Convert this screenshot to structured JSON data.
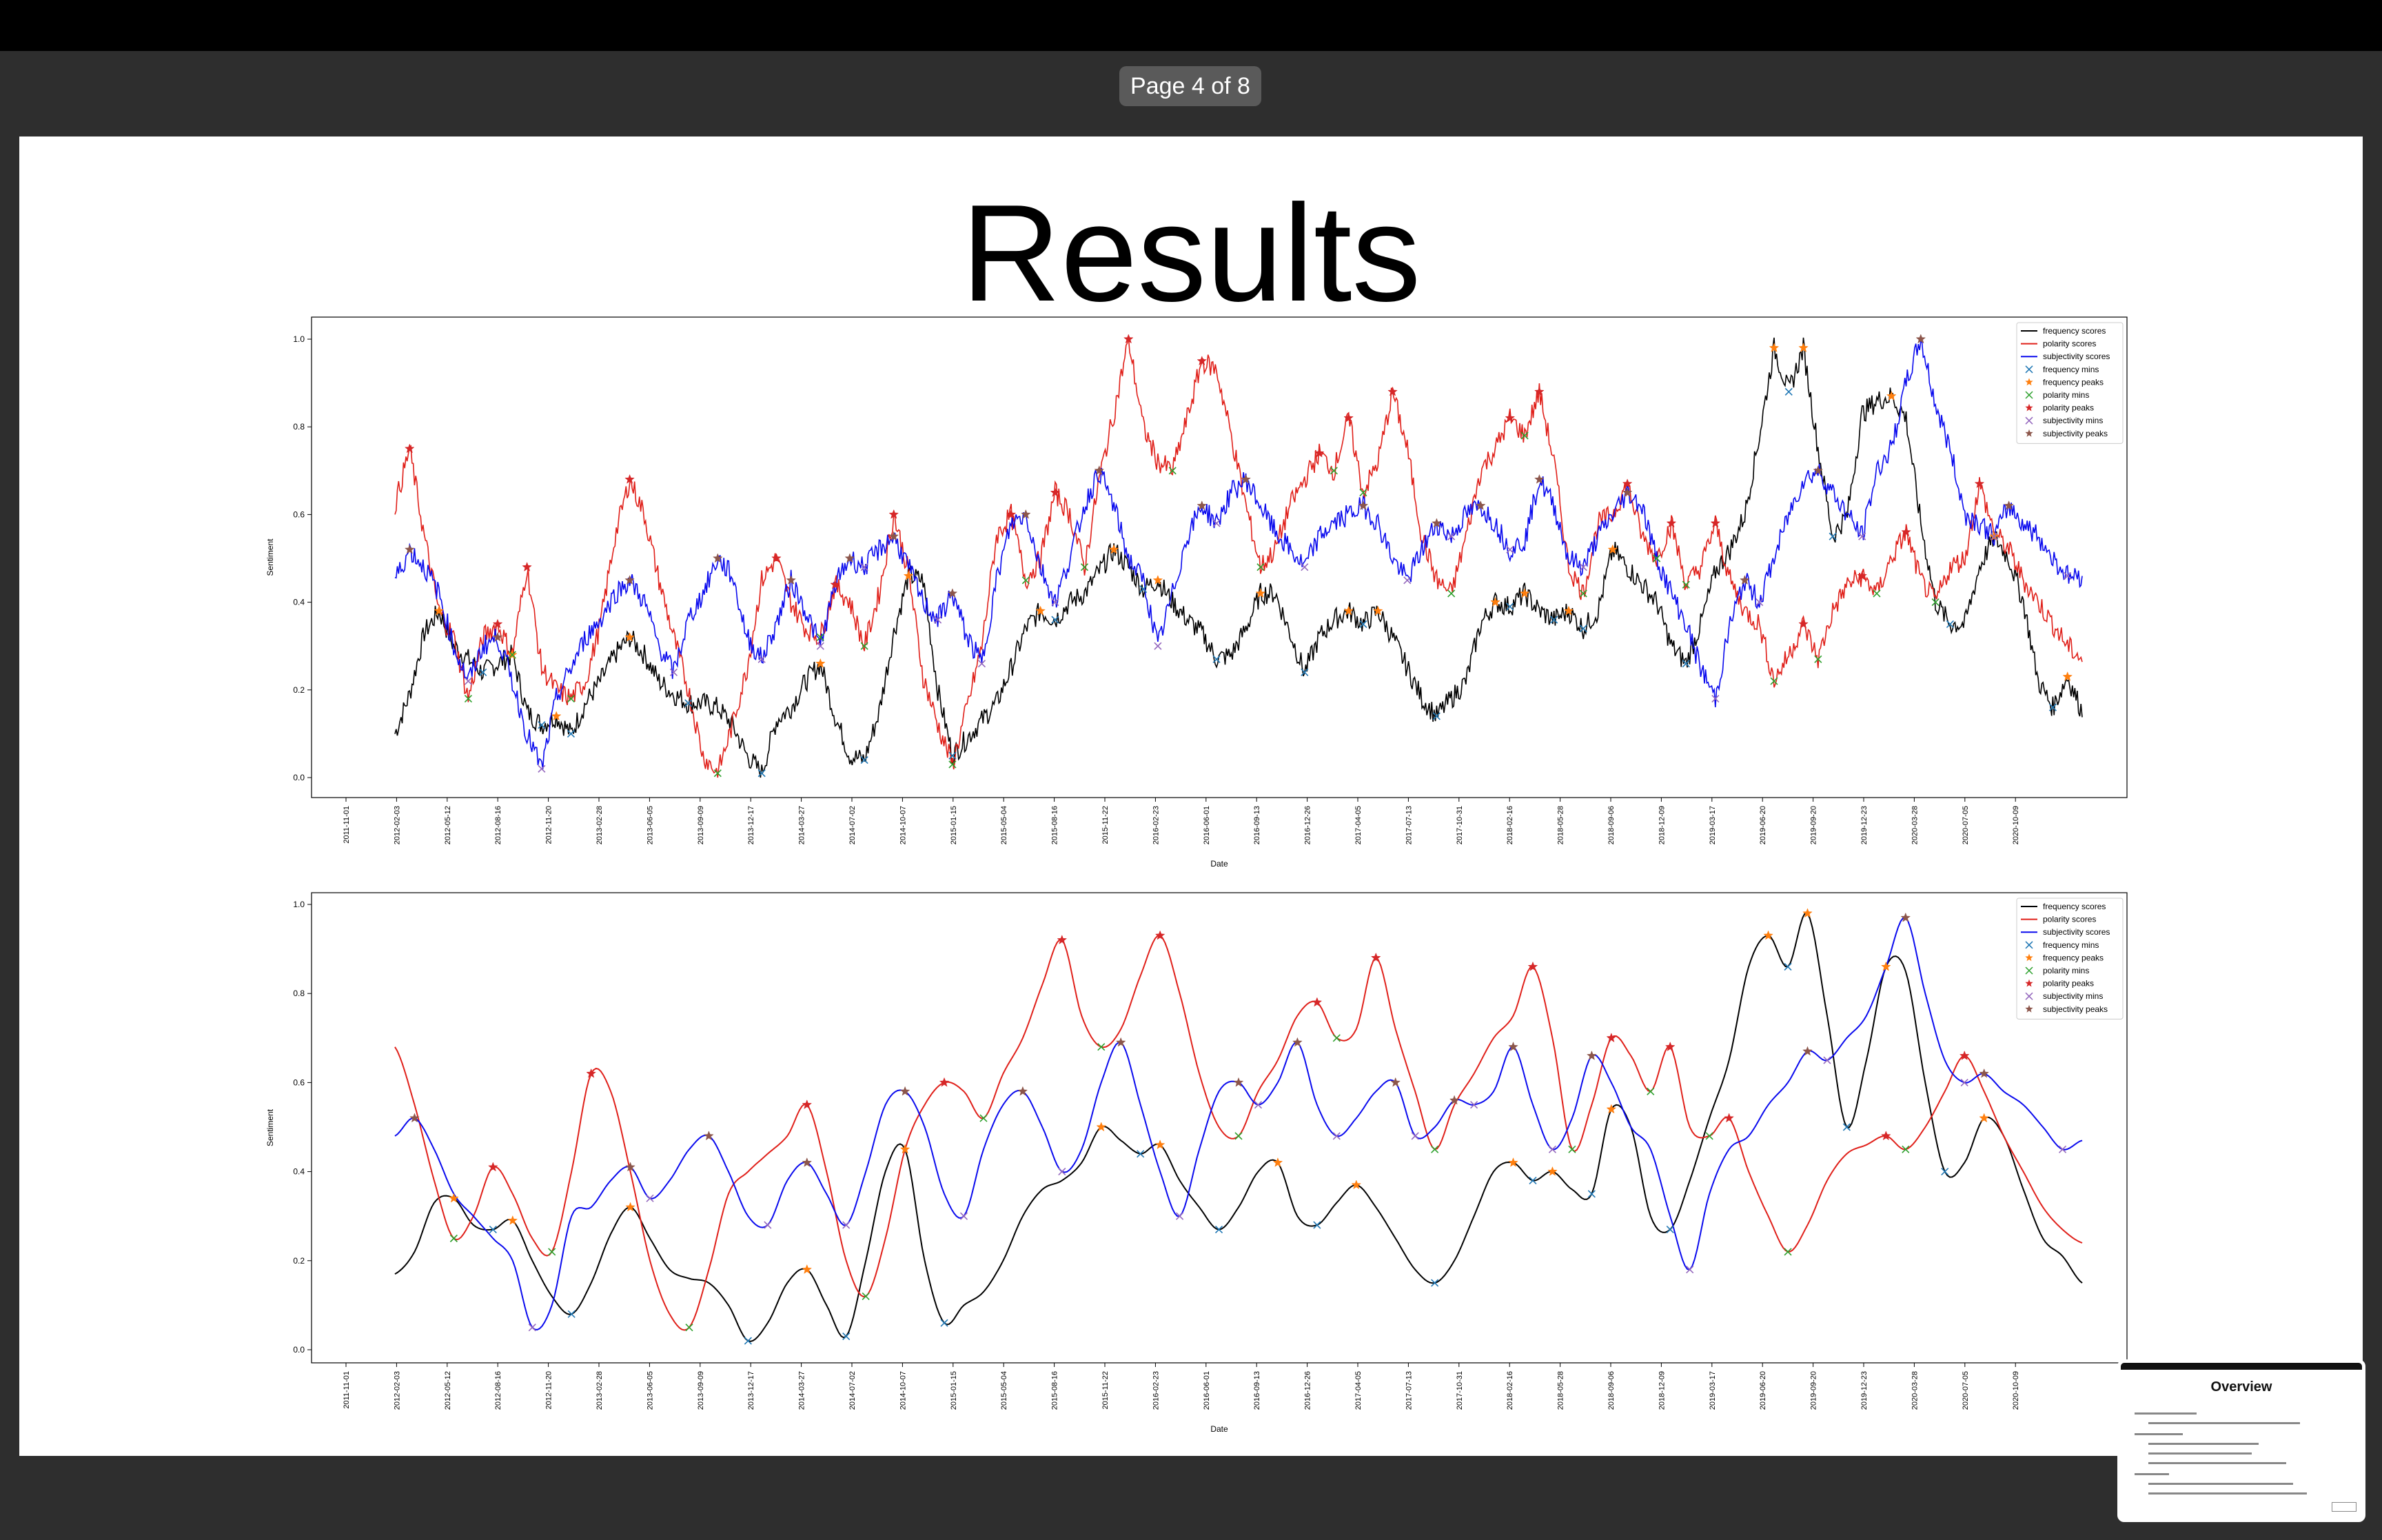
{
  "viewer": {
    "page_indicator": "Page 4 of 8"
  },
  "slide": {
    "title": "Results"
  },
  "thumbnail": {
    "title": "Overview"
  },
  "colors": {
    "frequency": "#000000",
    "polarity": "#e0201a",
    "subjectivity": "#0a0aee",
    "frequency_mins": "#1f77b4",
    "frequency_peaks": "#ff7f0e",
    "polarity_mins": "#2ca02c",
    "polarity_peaks": "#d62728",
    "subjectivity_mins": "#9467bd",
    "subjectivity_peaks": "#8c564b"
  },
  "chart_data": [
    {
      "type": "line",
      "title": "",
      "xlabel": "Date",
      "ylabel": "Sentiment",
      "ylim": [
        0.0,
        1.0
      ],
      "yticks": [
        "0.0",
        "0.2",
        "0.4",
        "0.6",
        "0.8",
        "1.0"
      ],
      "x_tick_labels": [
        "2011-11-01",
        "2012-02-03",
        "2012-05-12",
        "2012-08-16",
        "2012-11-20",
        "2013-02-28",
        "2013-06-05",
        "2013-09-09",
        "2013-12-17",
        "2014-03-27",
        "2014-07-02",
        "2014-10-07",
        "2015-01-15",
        "2015-05-04",
        "2015-08-16",
        "2015-11-22",
        "2016-02-23",
        "2016-06-01",
        "2016-09-13",
        "2016-12-26",
        "2017-04-05",
        "2017-07-13",
        "2017-10-31",
        "2018-02-16",
        "2018-05-28",
        "2018-09-06",
        "2018-12-09",
        "2019-03-17",
        "2019-06-20",
        "2019-09-20",
        "2019-12-23",
        "2020-03-28",
        "2020-07-05",
        "2020-10-09"
      ],
      "legend": [
        "frequency scores",
        "polarity scores",
        "subjectivity scores",
        "frequency mins",
        "frequency peaks",
        "polarity mins",
        "polarity peaks",
        "subjectivity mins",
        "subjectivity peaks"
      ],
      "legend_position": "top-right",
      "noisy": true,
      "series": [
        {
          "name": "frequency scores",
          "key": "frequency",
          "values": [
            0.1,
            0.19,
            0.33,
            0.38,
            0.3,
            0.27,
            0.24,
            0.26,
            0.28,
            0.15,
            0.12,
            0.14,
            0.1,
            0.17,
            0.22,
            0.28,
            0.32,
            0.28,
            0.22,
            0.19,
            0.17,
            0.17,
            0.16,
            0.12,
            0.05,
            0.01,
            0.13,
            0.16,
            0.22,
            0.26,
            0.14,
            0.05,
            0.04,
            0.15,
            0.33,
            0.46,
            0.45,
            0.2,
            0.05,
            0.09,
            0.13,
            0.17,
            0.25,
            0.34,
            0.38,
            0.36,
            0.4,
            0.42,
            0.47,
            0.52,
            0.48,
            0.43,
            0.45,
            0.4,
            0.36,
            0.33,
            0.27,
            0.28,
            0.34,
            0.42,
            0.42,
            0.33,
            0.24,
            0.32,
            0.36,
            0.38,
            0.35,
            0.38,
            0.32,
            0.25,
            0.18,
            0.14,
            0.18,
            0.22,
            0.35,
            0.4,
            0.39,
            0.42,
            0.38,
            0.36,
            0.38,
            0.34,
            0.38,
            0.52,
            0.48,
            0.44,
            0.4,
            0.3,
            0.26,
            0.35,
            0.47,
            0.52,
            0.6,
            0.78,
            0.98,
            0.88,
            0.98,
            0.75,
            0.55,
            0.6,
            0.83,
            0.86,
            0.87,
            0.82,
            0.58,
            0.4,
            0.35,
            0.35,
            0.48,
            0.55,
            0.5,
            0.4,
            0.22,
            0.16,
            0.23,
            0.15
          ]
        },
        {
          "name": "polarity scores",
          "key": "polarity",
          "values": [
            0.62,
            0.75,
            0.55,
            0.38,
            0.32,
            0.18,
            0.32,
            0.35,
            0.28,
            0.48,
            0.25,
            0.2,
            0.18,
            0.22,
            0.35,
            0.55,
            0.68,
            0.6,
            0.45,
            0.32,
            0.2,
            0.05,
            0.01,
            0.12,
            0.25,
            0.45,
            0.5,
            0.4,
            0.34,
            0.32,
            0.44,
            0.4,
            0.3,
            0.42,
            0.6,
            0.47,
            0.23,
            0.12,
            0.03,
            0.16,
            0.3,
            0.55,
            0.6,
            0.45,
            0.5,
            0.65,
            0.6,
            0.48,
            0.68,
            0.83,
            1.0,
            0.8,
            0.72,
            0.7,
            0.82,
            0.95,
            0.93,
            0.78,
            0.62,
            0.48,
            0.52,
            0.62,
            0.68,
            0.74,
            0.7,
            0.82,
            0.65,
            0.72,
            0.88,
            0.75,
            0.55,
            0.45,
            0.42,
            0.55,
            0.7,
            0.75,
            0.82,
            0.78,
            0.88,
            0.72,
            0.48,
            0.42,
            0.58,
            0.6,
            0.67,
            0.55,
            0.5,
            0.58,
            0.44,
            0.48,
            0.58,
            0.45,
            0.38,
            0.35,
            0.22,
            0.28,
            0.35,
            0.27,
            0.38,
            0.44,
            0.46,
            0.42,
            0.5,
            0.56,
            0.45,
            0.4,
            0.48,
            0.5,
            0.67,
            0.56,
            0.52,
            0.45,
            0.4,
            0.35,
            0.3,
            0.27
          ]
        },
        {
          "name": "subjectivity scores",
          "key": "subjectivity",
          "values": [
            0.45,
            0.52,
            0.48,
            0.42,
            0.3,
            0.22,
            0.3,
            0.32,
            0.22,
            0.1,
            0.02,
            0.18,
            0.25,
            0.32,
            0.36,
            0.42,
            0.45,
            0.4,
            0.3,
            0.24,
            0.36,
            0.42,
            0.5,
            0.46,
            0.32,
            0.27,
            0.35,
            0.45,
            0.38,
            0.3,
            0.44,
            0.5,
            0.48,
            0.52,
            0.55,
            0.48,
            0.4,
            0.36,
            0.42,
            0.32,
            0.26,
            0.45,
            0.58,
            0.6,
            0.48,
            0.4,
            0.5,
            0.62,
            0.7,
            0.62,
            0.5,
            0.45,
            0.3,
            0.42,
            0.55,
            0.62,
            0.58,
            0.65,
            0.68,
            0.62,
            0.56,
            0.52,
            0.48,
            0.55,
            0.58,
            0.6,
            0.62,
            0.58,
            0.5,
            0.45,
            0.52,
            0.58,
            0.55,
            0.6,
            0.62,
            0.58,
            0.52,
            0.54,
            0.68,
            0.62,
            0.5,
            0.48,
            0.55,
            0.6,
            0.65,
            0.62,
            0.5,
            0.42,
            0.35,
            0.25,
            0.18,
            0.35,
            0.45,
            0.4,
            0.5,
            0.6,
            0.68,
            0.7,
            0.65,
            0.6,
            0.55,
            0.7,
            0.75,
            0.9,
            1.0,
            0.85,
            0.75,
            0.6,
            0.58,
            0.55,
            0.62,
            0.58,
            0.55,
            0.5,
            0.46,
            0.46
          ]
        }
      ]
    },
    {
      "type": "line",
      "title": "",
      "xlabel": "Date",
      "ylabel": "Sentiment",
      "ylim": [
        0.0,
        1.0
      ],
      "yticks": [
        "0.0",
        "0.2",
        "0.4",
        "0.6",
        "0.8",
        "1.0"
      ],
      "x_tick_labels": [
        "2011-11-01",
        "2012-02-03",
        "2012-05-12",
        "2012-08-16",
        "2012-11-20",
        "2013-02-28",
        "2013-06-05",
        "2013-09-09",
        "2013-12-17",
        "2014-03-27",
        "2014-07-02",
        "2014-10-07",
        "2015-01-15",
        "2015-05-04",
        "2015-08-16",
        "2015-11-22",
        "2016-02-23",
        "2016-06-01",
        "2016-09-13",
        "2016-12-26",
        "2017-04-05",
        "2017-07-13",
        "2017-10-31",
        "2018-02-16",
        "2018-05-28",
        "2018-09-06",
        "2018-12-09",
        "2019-03-17",
        "2019-06-20",
        "2019-09-20",
        "2019-12-23",
        "2020-03-28",
        "2020-07-05",
        "2020-10-09"
      ],
      "legend": [
        "frequency scores",
        "polarity scores",
        "subjectivity scores",
        "frequency mins",
        "frequency peaks",
        "polarity mins",
        "polarity peaks",
        "subjectivity mins",
        "subjectivity peaks"
      ],
      "legend_position": "top-right",
      "noisy": false,
      "series": [
        {
          "name": "frequency scores",
          "key": "frequency",
          "values": [
            0.17,
            0.22,
            0.33,
            0.34,
            0.28,
            0.27,
            0.29,
            0.2,
            0.12,
            0.08,
            0.15,
            0.26,
            0.32,
            0.25,
            0.18,
            0.16,
            0.15,
            0.1,
            0.02,
            0.06,
            0.15,
            0.18,
            0.1,
            0.03,
            0.2,
            0.4,
            0.45,
            0.2,
            0.06,
            0.1,
            0.13,
            0.2,
            0.3,
            0.36,
            0.38,
            0.42,
            0.5,
            0.47,
            0.44,
            0.46,
            0.38,
            0.32,
            0.27,
            0.32,
            0.4,
            0.42,
            0.3,
            0.28,
            0.33,
            0.37,
            0.32,
            0.25,
            0.18,
            0.15,
            0.2,
            0.3,
            0.4,
            0.42,
            0.38,
            0.4,
            0.36,
            0.35,
            0.54,
            0.5,
            0.3,
            0.27,
            0.38,
            0.52,
            0.65,
            0.86,
            0.93,
            0.86,
            0.98,
            0.75,
            0.5,
            0.65,
            0.86,
            0.85,
            0.6,
            0.4,
            0.42,
            0.52,
            0.48,
            0.36,
            0.25,
            0.21,
            0.15
          ]
        },
        {
          "name": "polarity scores",
          "key": "polarity",
          "values": [
            0.68,
            0.55,
            0.38,
            0.25,
            0.3,
            0.41,
            0.35,
            0.25,
            0.22,
            0.4,
            0.62,
            0.58,
            0.4,
            0.2,
            0.08,
            0.05,
            0.18,
            0.35,
            0.4,
            0.44,
            0.48,
            0.55,
            0.4,
            0.2,
            0.12,
            0.25,
            0.45,
            0.55,
            0.6,
            0.58,
            0.52,
            0.62,
            0.7,
            0.82,
            0.92,
            0.75,
            0.68,
            0.72,
            0.84,
            0.93,
            0.8,
            0.62,
            0.5,
            0.48,
            0.58,
            0.65,
            0.75,
            0.78,
            0.7,
            0.72,
            0.88,
            0.72,
            0.58,
            0.45,
            0.55,
            0.62,
            0.7,
            0.75,
            0.86,
            0.7,
            0.45,
            0.55,
            0.7,
            0.66,
            0.58,
            0.68,
            0.5,
            0.48,
            0.52,
            0.4,
            0.3,
            0.22,
            0.28,
            0.38,
            0.44,
            0.46,
            0.48,
            0.45,
            0.5,
            0.58,
            0.66,
            0.58,
            0.48,
            0.4,
            0.32,
            0.27,
            0.24
          ]
        },
        {
          "name": "subjectivity scores",
          "key": "subjectivity",
          "values": [
            0.48,
            0.52,
            0.45,
            0.35,
            0.3,
            0.25,
            0.2,
            0.05,
            0.1,
            0.3,
            0.32,
            0.38,
            0.41,
            0.34,
            0.38,
            0.45,
            0.48,
            0.4,
            0.3,
            0.28,
            0.38,
            0.42,
            0.35,
            0.28,
            0.4,
            0.55,
            0.58,
            0.5,
            0.35,
            0.3,
            0.45,
            0.55,
            0.58,
            0.5,
            0.4,
            0.45,
            0.6,
            0.69,
            0.55,
            0.4,
            0.3,
            0.45,
            0.58,
            0.6,
            0.55,
            0.6,
            0.69,
            0.55,
            0.48,
            0.52,
            0.58,
            0.6,
            0.48,
            0.5,
            0.56,
            0.55,
            0.58,
            0.68,
            0.55,
            0.45,
            0.52,
            0.66,
            0.6,
            0.5,
            0.45,
            0.3,
            0.18,
            0.35,
            0.45,
            0.48,
            0.55,
            0.6,
            0.67,
            0.65,
            0.7,
            0.75,
            0.86,
            0.97,
            0.8,
            0.65,
            0.6,
            0.62,
            0.58,
            0.55,
            0.5,
            0.45,
            0.47
          ]
        }
      ]
    }
  ]
}
